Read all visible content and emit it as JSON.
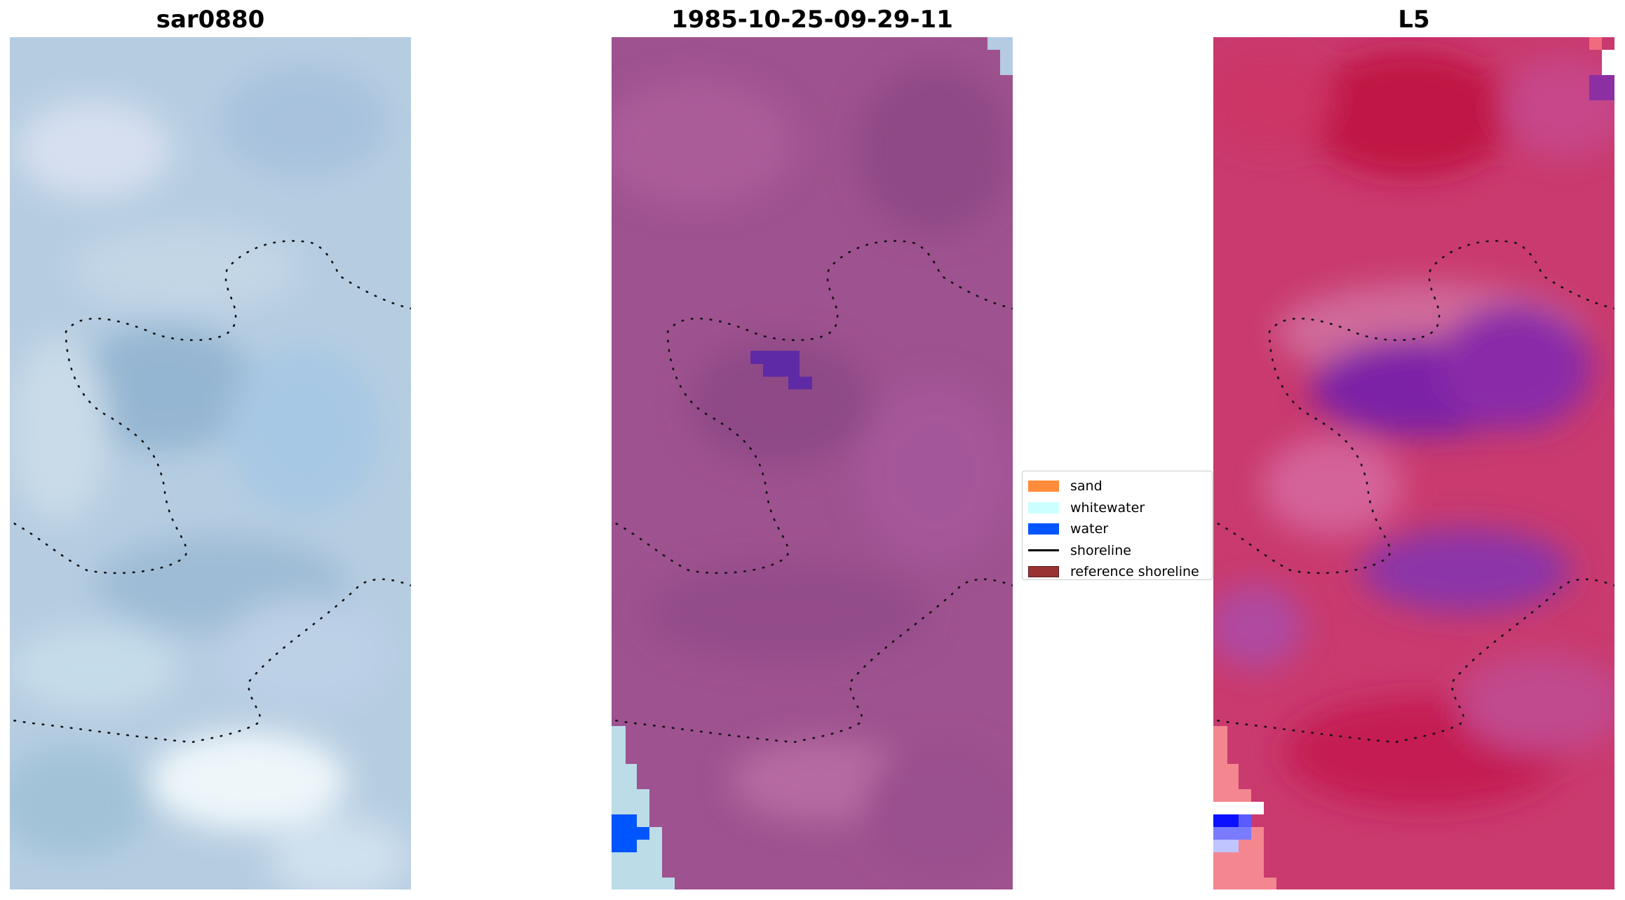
{
  "panels": [
    {
      "title": "sar0880"
    },
    {
      "title": "1985-10-25-09-29-11"
    },
    {
      "title": "L5"
    }
  ],
  "legend": {
    "items": [
      {
        "label": "sand",
        "color": "#ff8c3a"
      },
      {
        "label": "whitewater",
        "color": "#ccffff"
      },
      {
        "label": "water",
        "color": "#0055ff"
      },
      {
        "label": "shoreline",
        "color": "#000000"
      },
      {
        "label": "reference shoreline",
        "color": "#993333"
      }
    ]
  },
  "colors": {
    "panel1_base": "#b3cce0",
    "panel2_base": "#9c4f8c",
    "panel3_base": "#c8336a",
    "water": "#0055ff",
    "whitewater": "#b9dce8"
  }
}
